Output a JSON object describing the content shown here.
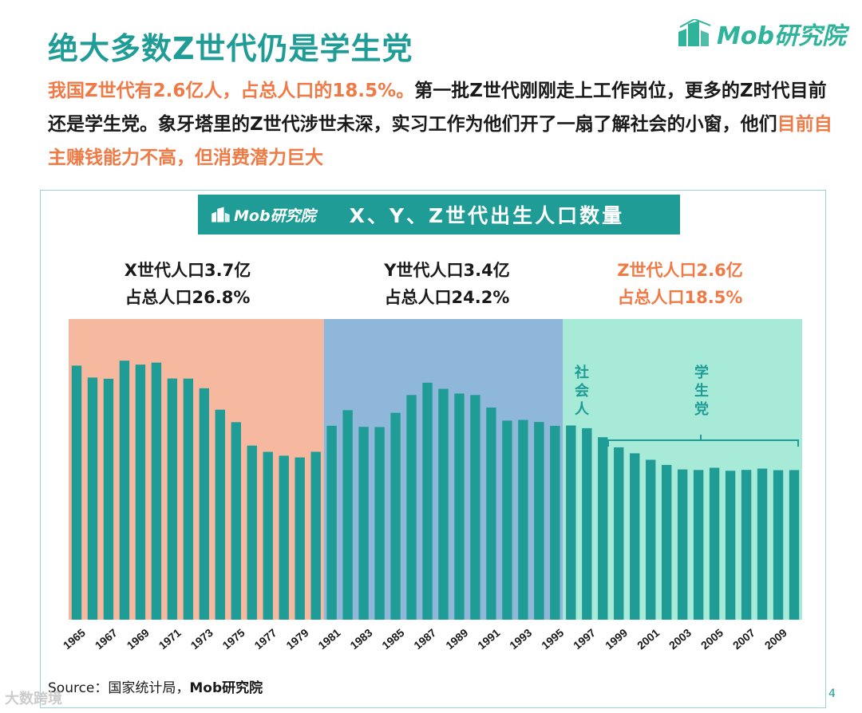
{
  "header": {
    "title": "绝大多数Z世代仍是学生党",
    "brand": "Mob研究院"
  },
  "intro": {
    "part1_highlight": "我国Z世代有2.6亿人，占总人口的18.5%。",
    "part2": "第一批Z世代刚刚走上工作岗位，更多的Z时代目前还是学生党。象牙塔里的Z世代涉世未深，实习工作为他们开了一扇了解社会的小窗，他们",
    "part3_highlight": "目前自主赚钱能力不高，但消费潜力巨大"
  },
  "banner": {
    "brand": "Mob研究院",
    "title": "X、Y、Z世代出生人口数量"
  },
  "generations": [
    {
      "line1": "X世代人口3.7亿",
      "line2": "占总人口26.8%"
    },
    {
      "line1": "Y世代人口3.4亿",
      "line2": "占总人口24.2%"
    },
    {
      "line1": "Z世代人口2.6亿",
      "line2": "占总人口18.5%"
    }
  ],
  "annotations": {
    "working": "社会人",
    "students": "学生党"
  },
  "chart_data": {
    "type": "bar",
    "title": "X、Y、Z世代出生人口数量",
    "xlabel": "",
    "ylabel": "",
    "ylim": [
      0,
      3200
    ],
    "x_tick_labels": [
      "1965",
      "1967",
      "1969",
      "1971",
      "1973",
      "1975",
      "1977",
      "1979",
      "1981",
      "1983",
      "1985",
      "1987",
      "1989",
      "1991",
      "1993",
      "1995",
      "1997",
      "1999",
      "2001",
      "2003",
      "2005",
      "2007",
      "2009"
    ],
    "categories": [
      "1965",
      "1966",
      "1967",
      "1968",
      "1969",
      "1970",
      "1971",
      "1972",
      "1973",
      "1974",
      "1975",
      "1976",
      "1977",
      "1978",
      "1979",
      "1980",
      "1981",
      "1982",
      "1983",
      "1984",
      "1985",
      "1986",
      "1987",
      "1988",
      "1989",
      "1990",
      "1991",
      "1992",
      "1993",
      "1994",
      "1995",
      "1996",
      "1997",
      "1998",
      "1999",
      "2000",
      "2001",
      "2002",
      "2003",
      "2004",
      "2005",
      "2006",
      "2007",
      "2008",
      "2009",
      "2010"
    ],
    "values": [
      2704,
      2577,
      2564,
      2757,
      2715,
      2736,
      2567,
      2566,
      2463,
      2235,
      2102,
      1853,
      1786,
      1745,
      1727,
      1787,
      2064,
      2230,
      2052,
      2050,
      2202,
      2391,
      2522,
      2457,
      2407,
      2391,
      2258,
      2119,
      2126,
      2104,
      2063,
      2067,
      2038,
      1942,
      1834,
      1771,
      1702,
      1647,
      1599,
      1593,
      1617,
      1585,
      1594,
      1608,
      1591,
      1592
    ],
    "regions": [
      {
        "name": "X世代",
        "from": "1965",
        "to": "1980",
        "color": "#f6b9a0"
      },
      {
        "name": "Y世代",
        "from": "1981",
        "to": "1995",
        "color": "#8fb7da"
      },
      {
        "name": "Z世代",
        "from": "1996",
        "to": "2010",
        "color": "#a6ead7"
      }
    ],
    "bar_color": "#1f9c96",
    "grid": false
  },
  "footer": {
    "source_prefix": "Source：国家统计局，",
    "source_bold": "Mob研究院",
    "page": "4",
    "watermark": "大数跨境"
  }
}
